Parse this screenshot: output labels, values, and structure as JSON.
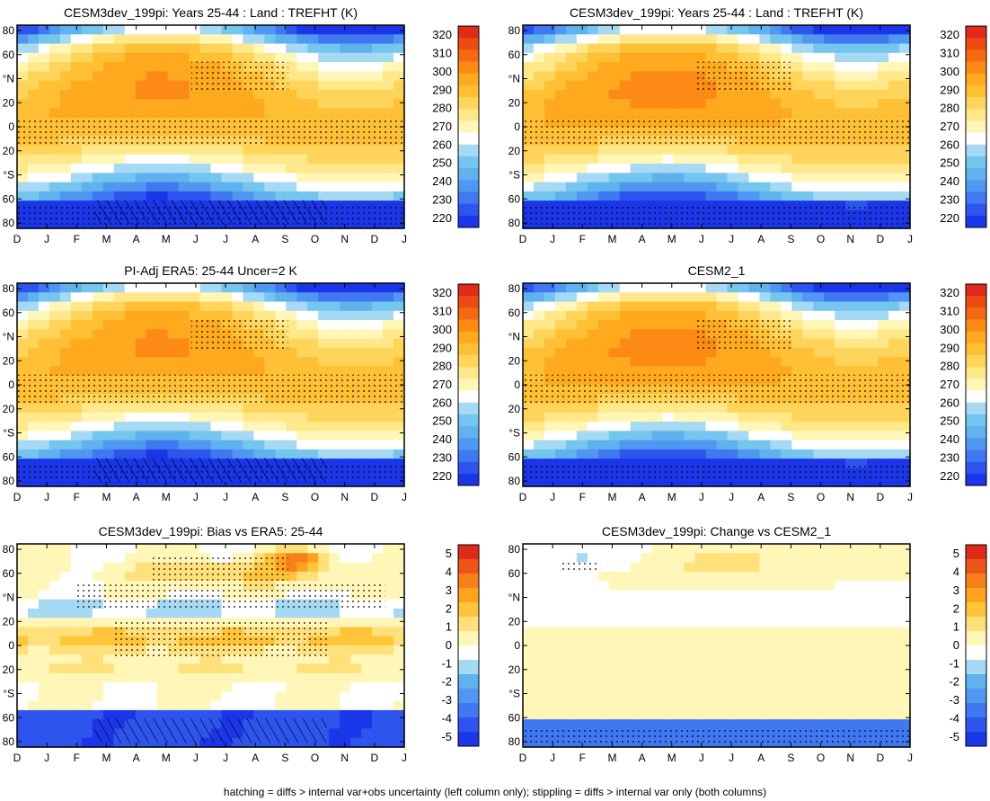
{
  "figure": {
    "footnote": "hatching = diffs > internal var+obs uncertainty (left column only); stippling = diffs > internal var only (both columns)"
  },
  "colors": {
    "abs_scale": [
      "#1a36e8",
      "#2d55ee",
      "#3f78f0",
      "#4f97f0",
      "#5fb2ee",
      "#74c6ef",
      "#a6d9f4",
      "#ffffff",
      "#fff6b8",
      "#ffe88a",
      "#ffd45a",
      "#ffc035",
      "#ffa91f",
      "#fc8a14",
      "#f56a10",
      "#ec4b14",
      "#e02a1a"
    ],
    "diff_scale": [
      "#1a36e8",
      "#2d55ee",
      "#3f78f0",
      "#4f97f0",
      "#5fb2ee",
      "#a6d9f4",
      "#ffffff",
      "#fff6b8",
      "#ffe07a",
      "#ffc53a",
      "#ffa31d",
      "#f7801a",
      "#ee5518",
      "#e02a1a"
    ]
  },
  "chart_data": [
    {
      "id": "p1",
      "type": "heatmap",
      "kind": "abs",
      "title": "CESM3dev_199pi: Years 25-44 : Land : TREFHT (K)",
      "x_ticks": [
        "D",
        "J",
        "F",
        "M",
        "A",
        "M",
        "J",
        "J",
        "A",
        "S",
        "O",
        "N",
        "D",
        "J"
      ],
      "y_ticks": [
        "80",
        "60",
        "°N",
        "20",
        "0",
        "20",
        "°S",
        "60",
        "80"
      ],
      "colorbar": [
        "320",
        "310",
        "300",
        "290",
        "280",
        "270",
        "260",
        "250",
        "240",
        "230",
        "220"
      ],
      "stipple": true,
      "hatch": true
    },
    {
      "id": "p2",
      "type": "heatmap",
      "kind": "abs",
      "title": "CESM3dev_199pi: Years 25-44 : Land : TREFHT (K)",
      "x_ticks": [
        "D",
        "J",
        "F",
        "M",
        "A",
        "M",
        "J",
        "J",
        "A",
        "S",
        "O",
        "N",
        "D",
        "J"
      ],
      "y_ticks": [
        "80",
        "60",
        "°N",
        "20",
        "0",
        "20",
        "°S",
        "60",
        "80"
      ],
      "colorbar": [
        "320",
        "310",
        "300",
        "290",
        "280",
        "270",
        "260",
        "250",
        "240",
        "230",
        "220"
      ],
      "stipple": true,
      "hatch": false
    },
    {
      "id": "p3",
      "type": "heatmap",
      "kind": "abs",
      "title": "PI-Adj ERA5: 25-44 Uncer=2 K",
      "x_ticks": [
        "D",
        "J",
        "F",
        "M",
        "A",
        "M",
        "J",
        "J",
        "A",
        "S",
        "O",
        "N",
        "D",
        "J"
      ],
      "y_ticks": [
        "80",
        "60",
        "°N",
        "20",
        "0",
        "20",
        "°S",
        "60",
        "80"
      ],
      "colorbar": [
        "320",
        "310",
        "300",
        "290",
        "280",
        "270",
        "260",
        "250",
        "240",
        "230",
        "220"
      ],
      "stipple": true,
      "hatch": true
    },
    {
      "id": "p4",
      "type": "heatmap",
      "kind": "abs",
      "title": "CESM2_1",
      "x_ticks": [
        "D",
        "J",
        "F",
        "M",
        "A",
        "M",
        "J",
        "J",
        "A",
        "S",
        "O",
        "N",
        "D",
        "J"
      ],
      "y_ticks": [
        "80",
        "60",
        "°N",
        "20",
        "0",
        "20",
        "°S",
        "60",
        "80"
      ],
      "colorbar": [
        "320",
        "310",
        "300",
        "290",
        "280",
        "270",
        "260",
        "250",
        "240",
        "230",
        "220"
      ],
      "stipple": true,
      "hatch": false
    },
    {
      "id": "p5",
      "type": "heatmap",
      "kind": "bias",
      "title": "CESM3dev_199pi: Bias vs ERA5: 25-44",
      "x_ticks": [
        "D",
        "J",
        "F",
        "M",
        "A",
        "M",
        "J",
        "J",
        "A",
        "S",
        "O",
        "N",
        "D",
        "J"
      ],
      "y_ticks": [
        "80",
        "60",
        "°N",
        "20",
        "0",
        "20",
        "°S",
        "60",
        "80"
      ],
      "colorbar": [
        "5",
        "4",
        "3",
        "2",
        "1",
        "0",
        "-1",
        "-2",
        "-3",
        "-4",
        "-5"
      ],
      "stipple": true,
      "hatch": true
    },
    {
      "id": "p6",
      "type": "heatmap",
      "kind": "change",
      "title": "CESM3dev_199pi: Change vs CESM2_1",
      "x_ticks": [
        "D",
        "J",
        "F",
        "M",
        "A",
        "M",
        "J",
        "J",
        "A",
        "S",
        "O",
        "N",
        "D",
        "J"
      ],
      "y_ticks": [
        "80",
        "60",
        "°N",
        "20",
        "0",
        "20",
        "°S",
        "60",
        "80"
      ],
      "colorbar": [
        "5",
        "4",
        "3",
        "2",
        "1",
        "0",
        "-1",
        "-2",
        "-3",
        "-4",
        "-5"
      ],
      "stipple": true,
      "hatch": false
    }
  ]
}
